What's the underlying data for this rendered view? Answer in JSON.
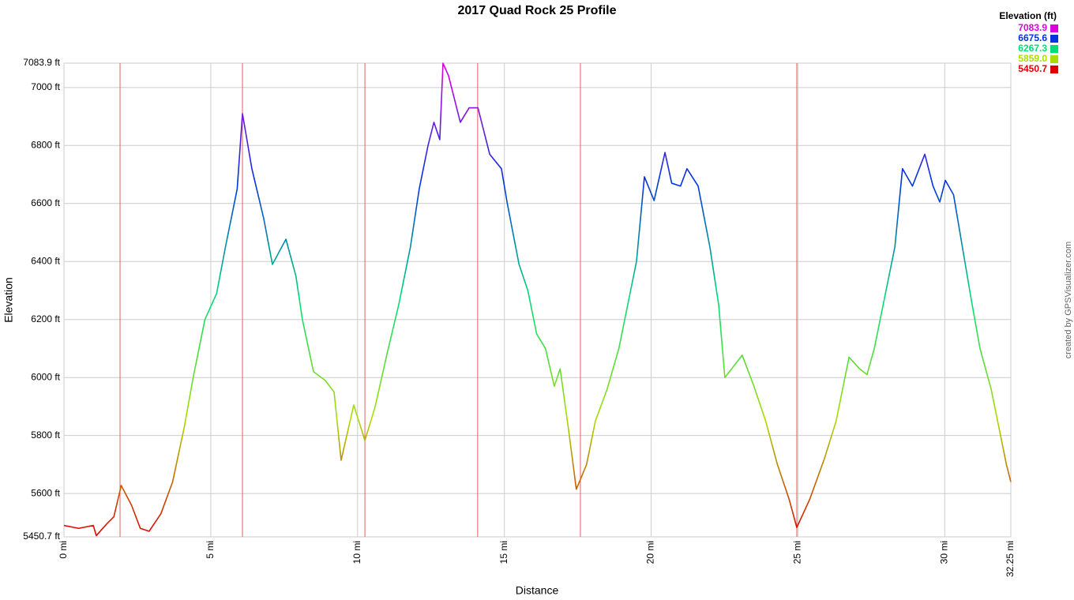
{
  "chart_data": {
    "type": "line",
    "title": "2017 Quad Rock 25 Profile",
    "x_label": "Distance",
    "y_label": "Elevation",
    "credit": "created by GPSVisualizer.com",
    "x": [
      0,
      0.5,
      1.0,
      1.1,
      1.5,
      1.7,
      1.95,
      2.3,
      2.6,
      2.9,
      3.3,
      3.7,
      4.1,
      4.4,
      4.8,
      5.2,
      5.5,
      5.9,
      6.08,
      6.4,
      6.8,
      7.1,
      7.56,
      7.9,
      8.12,
      8.5,
      8.9,
      9.2,
      9.44,
      9.87,
      10.25,
      10.6,
      11.0,
      11.4,
      11.8,
      12.1,
      12.4,
      12.6,
      12.8,
      12.91,
      13.1,
      13.3,
      13.5,
      13.8,
      14.1,
      14.3,
      14.5,
      14.9,
      15.1,
      15.5,
      15.8,
      16.1,
      16.4,
      16.7,
      16.9,
      17.2,
      17.45,
      17.8,
      18.1,
      18.5,
      18.9,
      19.3,
      19.5,
      19.77,
      20.1,
      20.47,
      20.7,
      21.0,
      21.22,
      21.6,
      22.0,
      22.3,
      22.51,
      23.1,
      23.5,
      23.9,
      24.3,
      24.7,
      24.96,
      25.4,
      25.9,
      26.3,
      26.74,
      27.1,
      27.35,
      27.6,
      27.9,
      28.3,
      28.56,
      28.9,
      29.32,
      29.6,
      29.83,
      30.02,
      30.3,
      30.6,
      30.9,
      31.2,
      31.58,
      31.8,
      32.1,
      32.25
    ],
    "series": [
      {
        "name": "Elevation",
        "values": [
          5490,
          5480,
          5490,
          5455,
          5500,
          5520,
          5628,
          5560,
          5480,
          5470,
          5530,
          5640,
          5830,
          6000,
          6200,
          6290,
          6450,
          6650,
          6910,
          6720,
          6550,
          6390,
          6477,
          6350,
          6200,
          6020,
          5990,
          5950,
          5715,
          5905,
          5783,
          5900,
          6080,
          6250,
          6450,
          6650,
          6800,
          6880,
          6820,
          7083.9,
          7040,
          6960,
          6880,
          6930,
          6930,
          6850,
          6770,
          6720,
          6600,
          6390,
          6300,
          6150,
          6100,
          5970,
          6030,
          5810,
          5615,
          5700,
          5850,
          5960,
          6100,
          6300,
          6400,
          6692,
          6610,
          6776,
          6670,
          6660,
          6720,
          6660,
          6450,
          6250,
          6000,
          6077,
          5970,
          5850,
          5700,
          5580,
          5483,
          5580,
          5720,
          5850,
          6070,
          6030,
          6010,
          6100,
          6250,
          6450,
          6720,
          6660,
          6770,
          6660,
          6605,
          6680,
          6630,
          6450,
          6270,
          6100,
          5960,
          5850,
          5700,
          5640
        ]
      }
    ],
    "markers": [
      1.91,
      6.08,
      10.25,
      14.09,
      17.59,
      24.96
    ],
    "marker_color": "#e06060",
    "xlim": [
      0,
      32.25
    ],
    "ylim": [
      5450.7,
      7083.9
    ],
    "xticks": [
      {
        "value": 0,
        "label": "0 mi"
      },
      {
        "value": 5,
        "label": "5 mi"
      },
      {
        "value": 10,
        "label": "10 mi"
      },
      {
        "value": 15,
        "label": "15 mi"
      },
      {
        "value": 20,
        "label": "20 mi"
      },
      {
        "value": 25,
        "label": "25 mi"
      },
      {
        "value": 30,
        "label": "30 mi"
      },
      {
        "value": 32.25,
        "label": "32.25 mi"
      }
    ],
    "yticks": [
      {
        "value": 5450.7,
        "label": "5450.7 ft"
      },
      {
        "value": 5600,
        "label": "5600 ft"
      },
      {
        "value": 5800,
        "label": "5800 ft"
      },
      {
        "value": 6000,
        "label": "6000 ft"
      },
      {
        "value": 6200,
        "label": "6200 ft"
      },
      {
        "value": 6400,
        "label": "6400 ft"
      },
      {
        "value": 6600,
        "label": "6600 ft"
      },
      {
        "value": 6800,
        "label": "6800 ft"
      },
      {
        "value": 7000,
        "label": "7000 ft"
      },
      {
        "value": 7083.9,
        "label": "7083.9 ft"
      }
    ],
    "grid": true,
    "legend": {
      "title": "Elevation (ft)",
      "values": [
        7083.9,
        6675.6,
        6267.3,
        5859.0,
        5450.7
      ],
      "value_labels": [
        "7083.9",
        "6675.6",
        "6267.3",
        "5859.0",
        "5450.7"
      ],
      "colors": [
        "#dd00dd",
        "#0033dd",
        "#00dd77",
        "#aadd00",
        "#dd0000"
      ]
    }
  }
}
